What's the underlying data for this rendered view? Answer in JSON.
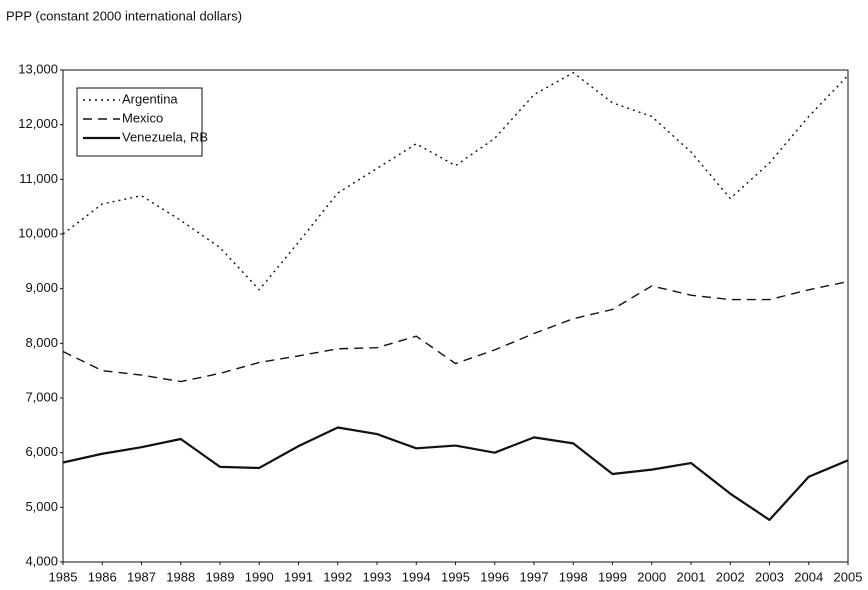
{
  "chart_data": {
    "type": "line",
    "y_axis_label": "PPP (constant 2000 international dollars)",
    "categories": [
      "1985",
      "1986",
      "1987",
      "1988",
      "1989",
      "1990",
      "1991",
      "1992",
      "1993",
      "1994",
      "1995",
      "1996",
      "1997",
      "1998",
      "1999",
      "2000",
      "2001",
      "2002",
      "2003",
      "2004",
      "2005"
    ],
    "series": [
      {
        "name": "Argentina",
        "color": "#111111",
        "dash": "2 4",
        "width": 1.4,
        "values": [
          10000,
          10550,
          10700,
          10250,
          9750,
          8980,
          9850,
          10750,
          11200,
          11650,
          11250,
          11750,
          12550,
          12950,
          12400,
          12150,
          11500,
          10650,
          11300,
          12150,
          12900
        ]
      },
      {
        "name": "Mexico",
        "color": "#111111",
        "dash": "9 6",
        "width": 1.4,
        "values": [
          7850,
          7500,
          7420,
          7300,
          7450,
          7650,
          7770,
          7900,
          7920,
          8130,
          7630,
          7880,
          8180,
          8450,
          8620,
          9050,
          8880,
          8800,
          8800,
          8980,
          9130
        ]
      },
      {
        "name": "Venezuela, RB",
        "color": "#111111",
        "dash": "none",
        "width": 2.2,
        "values": [
          5820,
          5980,
          6100,
          6250,
          5740,
          5720,
          6120,
          6460,
          6340,
          6080,
          6130,
          6000,
          6280,
          6170,
          5610,
          5690,
          5810,
          5250,
          4770,
          5560,
          5860
        ]
      }
    ],
    "ylim": [
      4000,
      13000
    ],
    "yticks": [
      {
        "value": 4000,
        "label": "4,000"
      },
      {
        "value": 5000,
        "label": "5,000"
      },
      {
        "value": 6000,
        "label": "6,000"
      },
      {
        "value": 7000,
        "label": "7,000"
      },
      {
        "value": 8000,
        "label": "8,000"
      },
      {
        "value": 9000,
        "label": "9,000"
      },
      {
        "value": 10000,
        "label": "10,000"
      },
      {
        "value": 11000,
        "label": "11,000"
      },
      {
        "value": 12000,
        "label": "12,000"
      },
      {
        "value": 13000,
        "label": "13,000"
      }
    ],
    "grid": false,
    "legend": "top-left"
  }
}
